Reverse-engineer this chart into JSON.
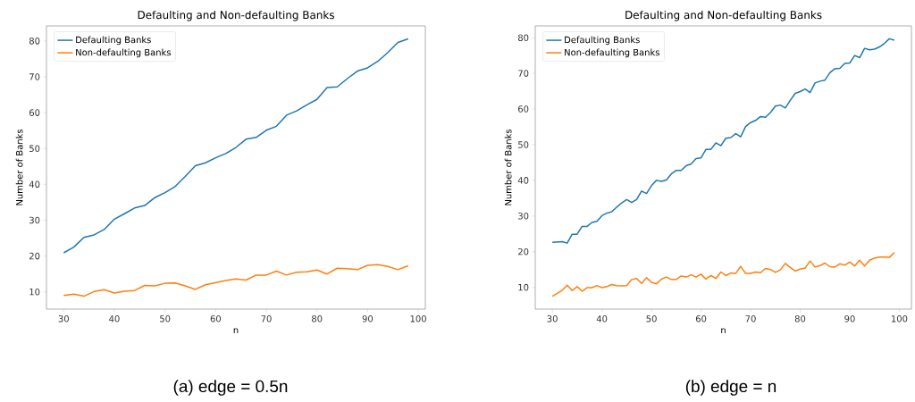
{
  "chart_data": [
    {
      "type": "line",
      "title": "Defaulting and Non-defaulting Banks",
      "xlabel": "n",
      "ylabel": "Number of Banks",
      "annotations": [
        "(a) edge = 0.5n"
      ],
      "x": [
        30,
        32,
        34,
        36,
        38,
        40,
        42,
        44,
        46,
        48,
        50,
        52,
        54,
        56,
        58,
        60,
        62,
        64,
        66,
        68,
        70,
        72,
        74,
        76,
        78,
        80,
        82,
        84,
        86,
        88,
        90,
        92,
        94,
        96,
        98
      ],
      "series": [
        {
          "name": "Defaulting Banks",
          "color": "#1f77b4",
          "values": [
            20.9,
            22.5,
            25.2,
            25.9,
            27.4,
            30.3,
            31.8,
            33.4,
            34.1,
            36.3,
            37.7,
            39.4,
            42.2,
            45.2,
            46.0,
            47.4,
            48.6,
            50.3,
            52.6,
            53.1,
            55.1,
            56.2,
            59.3,
            60.5,
            62.2,
            63.7,
            67.0,
            67.2,
            69.5,
            71.6,
            72.5,
            74.3,
            76.8,
            79.6,
            80.6
          ]
        },
        {
          "name": "Non-defaulting Banks",
          "color": "#ff7f0e",
          "values": [
            9.0,
            9.4,
            8.8,
            10.1,
            10.6,
            9.7,
            10.2,
            10.4,
            11.8,
            11.7,
            12.4,
            12.5,
            11.7,
            10.7,
            12.0,
            12.6,
            13.2,
            13.6,
            13.3,
            14.7,
            14.7,
            15.8,
            14.7,
            15.5,
            15.6,
            16.1,
            15.0,
            16.6,
            16.5,
            16.2,
            17.4,
            17.6,
            17.1,
            16.2,
            17.3
          ]
        }
      ],
      "xlim": [
        26.6,
        101.4
      ],
      "ylim": [
        5.2,
        84.2
      ],
      "xticks": [
        30,
        40,
        50,
        60,
        70,
        80,
        90,
        100
      ],
      "yticks": [
        10,
        20,
        30,
        40,
        50,
        60,
        70,
        80
      ],
      "legend": "top left",
      "grid": false
    },
    {
      "type": "line",
      "title": "Defaulting and Non-defaulting Banks",
      "xlabel": "n",
      "ylabel": "Number of Banks",
      "annotations": [
        "(b) edge = n"
      ],
      "x": [
        30,
        31,
        32,
        33,
        34,
        35,
        36,
        37,
        38,
        39,
        40,
        41,
        42,
        43,
        44,
        45,
        46,
        47,
        48,
        49,
        50,
        51,
        52,
        53,
        54,
        55,
        56,
        57,
        58,
        59,
        60,
        61,
        62,
        63,
        64,
        65,
        66,
        67,
        68,
        69,
        70,
        71,
        72,
        73,
        74,
        75,
        76,
        77,
        78,
        79,
        80,
        81,
        82,
        83,
        84,
        85,
        86,
        87,
        88,
        89,
        90,
        91,
        92,
        93,
        94,
        95,
        96,
        97,
        98,
        99
      ],
      "series": [
        {
          "name": "Defaulting Banks",
          "color": "#1f77b4",
          "values": [
            22.6,
            22.7,
            22.8,
            22.4,
            24.9,
            24.9,
            27.1,
            27.1,
            28.2,
            28.5,
            30.1,
            30.8,
            31.2,
            32.5,
            33.7,
            34.6,
            33.8,
            34.6,
            37.0,
            36.3,
            38.5,
            40.0,
            39.7,
            40.1,
            41.8,
            42.8,
            42.8,
            44.1,
            44.6,
            46.1,
            46.3,
            48.7,
            48.7,
            50.5,
            49.7,
            51.8,
            52.0,
            53.1,
            52.2,
            55.1,
            56.2,
            56.8,
            57.9,
            57.7,
            59.0,
            60.8,
            61.1,
            60.3,
            62.4,
            64.4,
            64.9,
            65.6,
            64.6,
            67.3,
            67.8,
            68.1,
            70.2,
            71.3,
            71.4,
            72.8,
            72.9,
            75.0,
            74.4,
            77.0,
            76.6,
            76.8,
            77.4,
            78.4,
            79.7,
            79.3
          ]
        },
        {
          "name": "Non-defaulting Banks",
          "color": "#ff7f0e",
          "values": [
            7.5,
            8.3,
            9.2,
            10.6,
            9.1,
            10.2,
            8.9,
            9.9,
            9.9,
            10.5,
            9.9,
            10.2,
            10.8,
            10.5,
            10.4,
            10.5,
            12.2,
            12.5,
            11.1,
            12.7,
            11.4,
            11.0,
            12.3,
            12.9,
            12.2,
            12.2,
            13.2,
            12.9,
            13.5,
            12.9,
            13.7,
            12.3,
            13.3,
            12.5,
            14.3,
            13.3,
            14.0,
            13.9,
            15.9,
            13.9,
            13.9,
            14.3,
            14.1,
            15.3,
            15.0,
            14.2,
            14.9,
            16.7,
            15.6,
            14.6,
            15.1,
            15.4,
            17.4,
            15.7,
            16.1,
            16.8,
            15.8,
            15.7,
            16.6,
            16.2,
            17.1,
            16.0,
            17.6,
            16.0,
            17.6,
            18.2,
            18.5,
            18.5,
            18.4,
            19.8
          ]
        }
      ],
      "xlim": [
        26.55,
        102.45
      ],
      "ylim": [
        3.9,
        83.3
      ],
      "xticks": [
        30,
        40,
        50,
        60,
        70,
        80,
        90,
        100
      ],
      "yticks": [
        10,
        20,
        30,
        40,
        50,
        60,
        70,
        80
      ],
      "legend": "top left",
      "grid": false
    }
  ]
}
